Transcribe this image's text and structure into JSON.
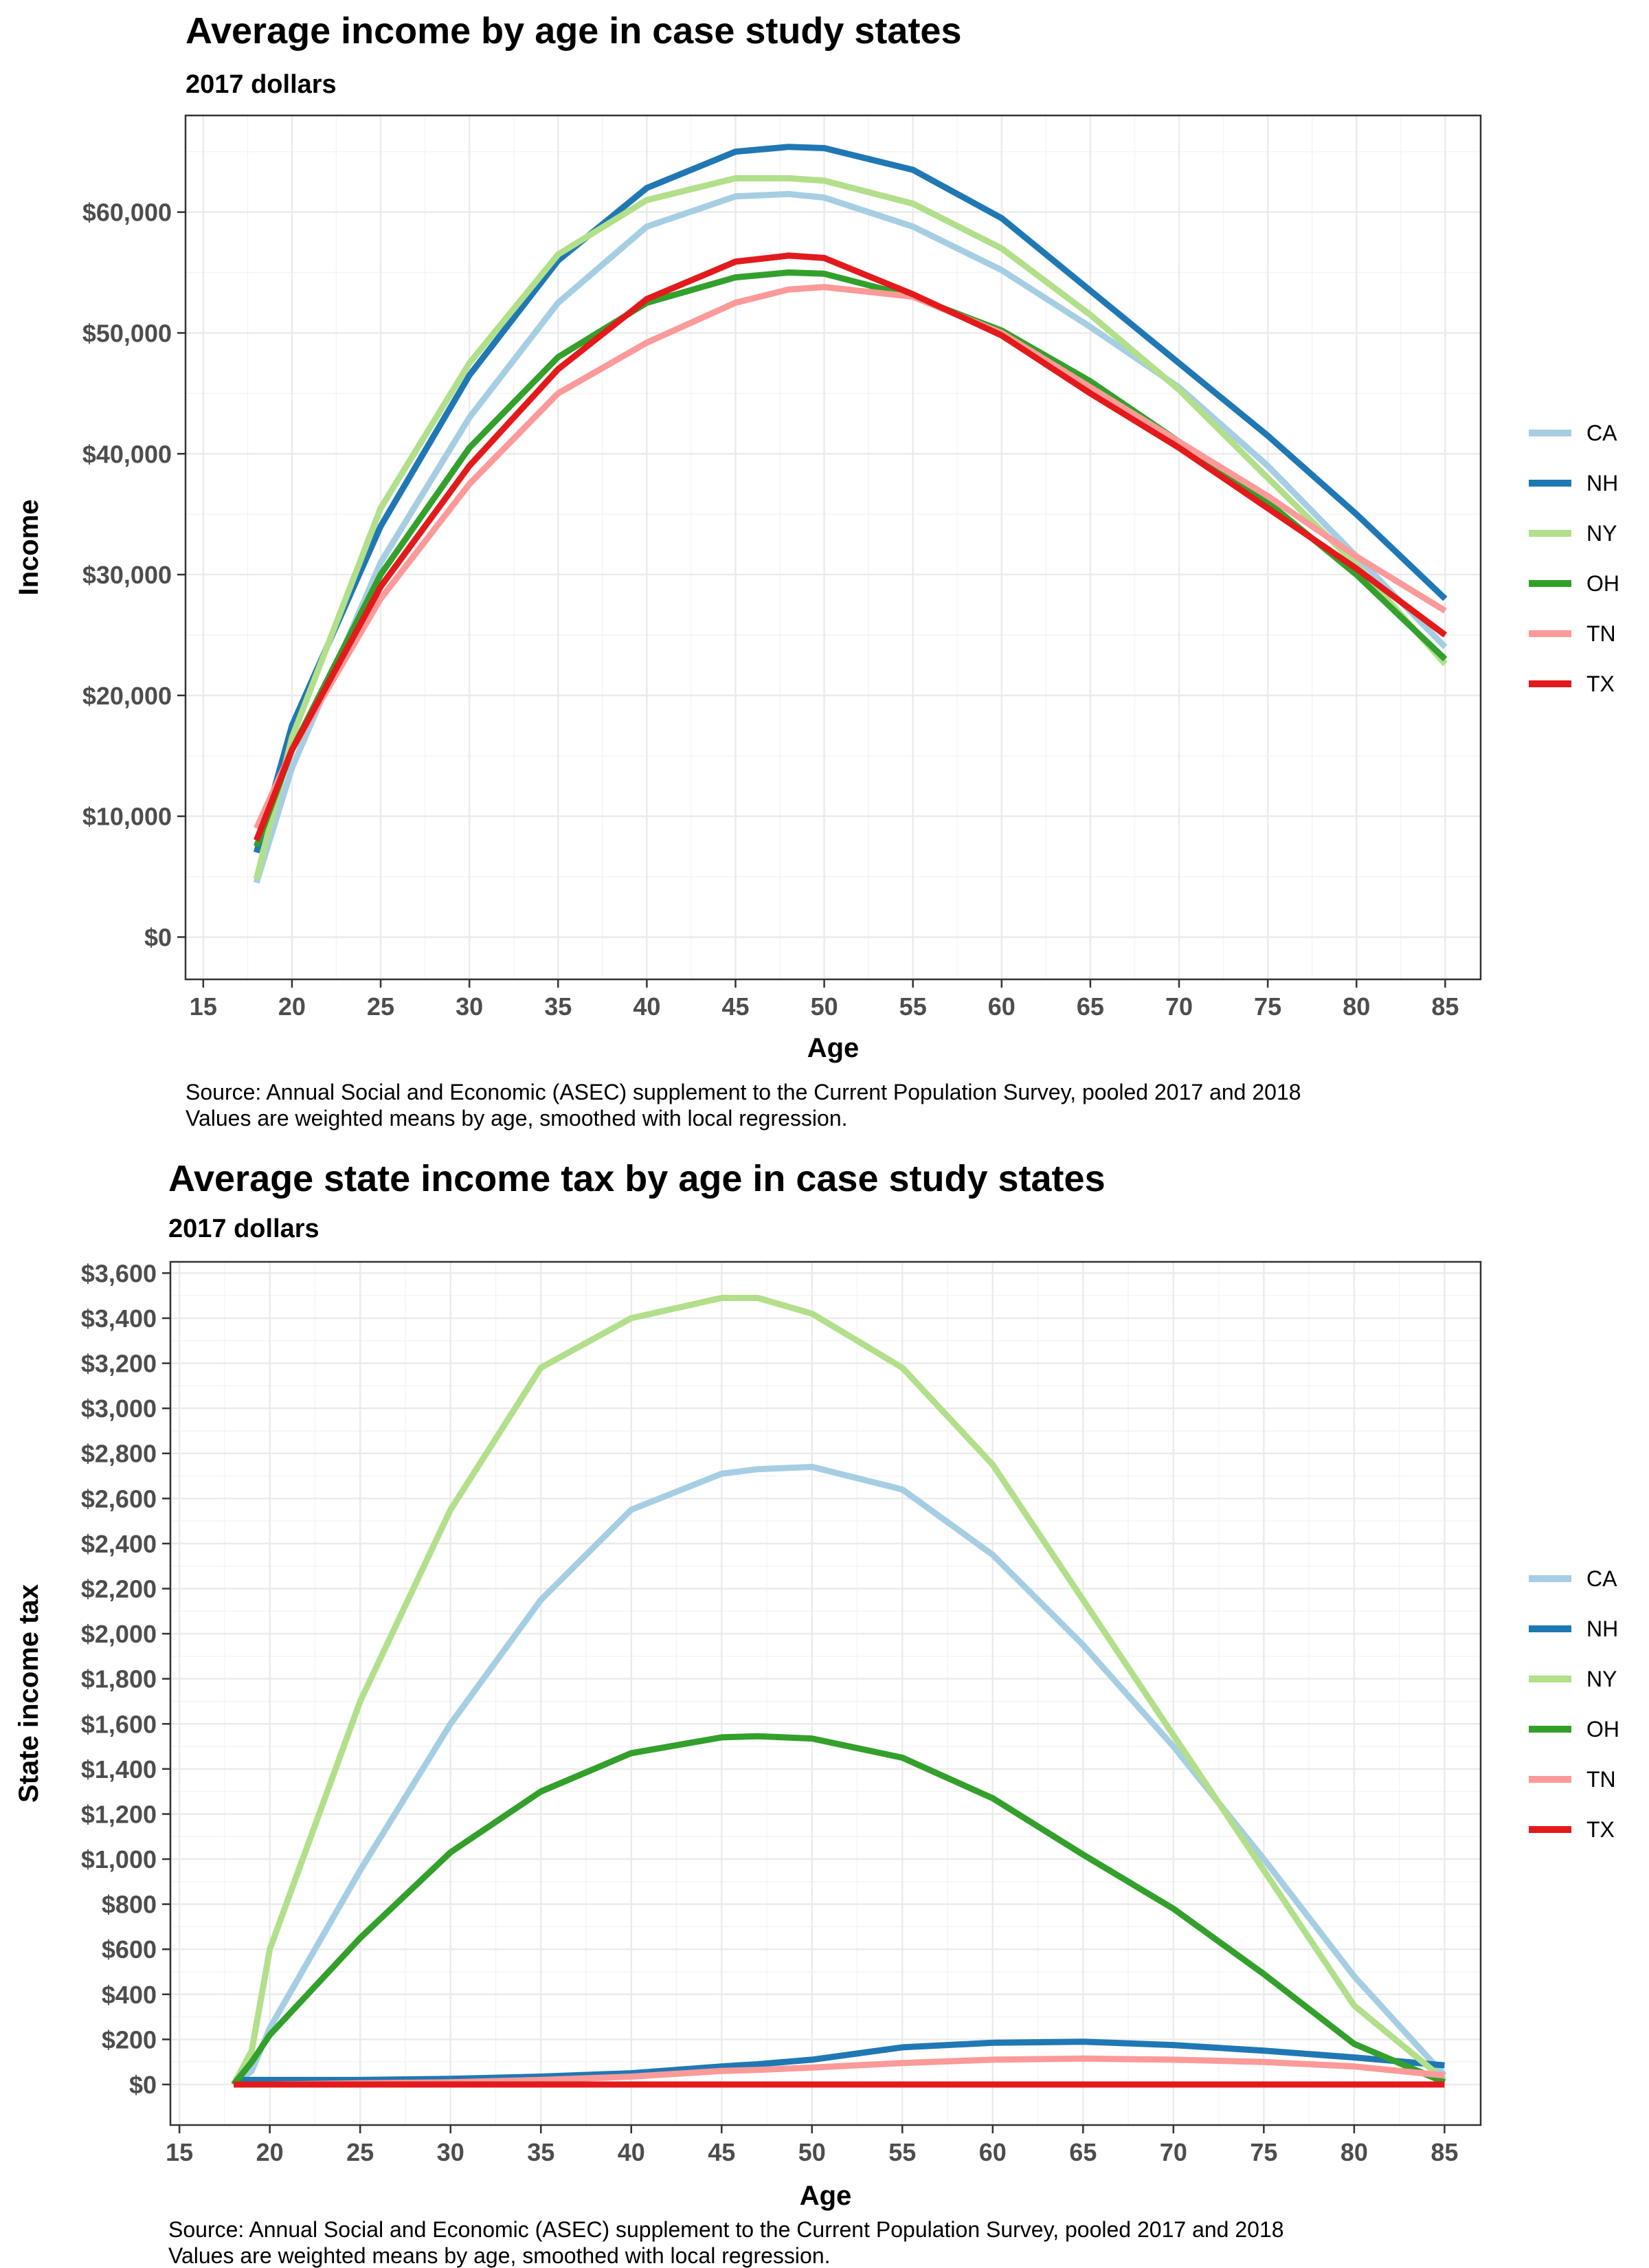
{
  "chart_data": [
    {
      "type": "line",
      "title": "Average income by age in case study states",
      "subtitle": "2017 dollars",
      "xlabel": "Age",
      "ylabel": "Income",
      "xlim": [
        14,
        87
      ],
      "ylim": [
        -3500,
        68000
      ],
      "x_ticks": [
        15,
        20,
        25,
        30,
        35,
        40,
        45,
        50,
        55,
        60,
        65,
        70,
        75,
        80,
        85
      ],
      "x_tick_labels": [
        "15",
        "20",
        "25",
        "30",
        "35",
        "40",
        "45",
        "50",
        "55",
        "60",
        "65",
        "70",
        "75",
        "80",
        "85"
      ],
      "y_ticks": [
        0,
        10000,
        20000,
        30000,
        40000,
        50000,
        60000
      ],
      "y_tick_labels": [
        "$0",
        "$10,000",
        "$20,000",
        "$30,000",
        "$40,000",
        "$50,000",
        "$60,000"
      ],
      "grid": true,
      "legend_position": "right",
      "caption_lines": [
        "Source: Annual Social and Economic (ASEC) supplement to the Current Population Survey, pooled 2017 and 2018",
        "Values are weighted means by age, smoothed with local regression."
      ],
      "x": [
        18,
        20,
        25,
        30,
        35,
        40,
        45,
        48,
        50,
        55,
        60,
        65,
        70,
        75,
        80,
        85
      ],
      "series": [
        {
          "name": "CA",
          "color": "#a6cee3",
          "values": [
            4500,
            14000,
            31000,
            43000,
            52500,
            58800,
            61300,
            61500,
            61200,
            58800,
            55200,
            50500,
            45500,
            39000,
            31500,
            24000
          ]
        },
        {
          "name": "NH",
          "color": "#1f78b4",
          "values": [
            7000,
            17500,
            34000,
            46500,
            56000,
            62000,
            65000,
            65400,
            65300,
            63500,
            59500,
            53500,
            47500,
            41500,
            35000,
            28000
          ]
        },
        {
          "name": "NY",
          "color": "#b2df8a",
          "values": [
            4800,
            16500,
            35500,
            47500,
            56500,
            61000,
            62800,
            62800,
            62600,
            60700,
            57000,
            51500,
            45300,
            38000,
            30800,
            22600
          ]
        },
        {
          "name": "OH",
          "color": "#33a02c",
          "values": [
            7500,
            15500,
            30000,
            40500,
            48000,
            52500,
            54600,
            55000,
            54900,
            53000,
            50200,
            46000,
            41000,
            36000,
            30000,
            23000
          ]
        },
        {
          "name": "TN",
          "color": "#fb9a99",
          "values": [
            9000,
            15500,
            28000,
            37500,
            45000,
            49200,
            52500,
            53600,
            53800,
            53000,
            50000,
            45500,
            41000,
            36500,
            31500,
            27000
          ]
        },
        {
          "name": "TX",
          "color": "#e31a1c",
          "values": [
            8000,
            15500,
            29000,
            39000,
            47000,
            52800,
            55900,
            56400,
            56200,
            53200,
            49800,
            45000,
            40500,
            35500,
            30500,
            25000
          ]
        }
      ]
    },
    {
      "type": "line",
      "title": "Average state income tax by age in case study states",
      "subtitle": "2017 dollars",
      "xlabel": "Age",
      "ylabel": "State income tax",
      "xlim": [
        14.5,
        87
      ],
      "ylim": [
        -180,
        3650
      ],
      "x_ticks": [
        15,
        20,
        25,
        30,
        35,
        40,
        45,
        50,
        55,
        60,
        65,
        70,
        75,
        80,
        85
      ],
      "x_tick_labels": [
        "15",
        "20",
        "25",
        "30",
        "35",
        "40",
        "45",
        "50",
        "55",
        "60",
        "65",
        "70",
        "75",
        "80",
        "85"
      ],
      "y_ticks": [
        0,
        200,
        400,
        600,
        800,
        1000,
        1200,
        1400,
        1600,
        1800,
        2000,
        2200,
        2400,
        2600,
        2800,
        3000,
        3200,
        3400,
        3600
      ],
      "y_tick_labels": [
        "$0",
        "$200",
        "$400",
        "$600",
        "$800",
        "$1,000",
        "$1,200",
        "$1,400",
        "$1,600",
        "$1,800",
        "$2,000",
        "$2,200",
        "$2,400",
        "$2,600",
        "$2,800",
        "$3,000",
        "$3,200",
        "$3,400",
        "$3,600"
      ],
      "grid": true,
      "legend_position": "right",
      "caption_lines": [
        "Source: Annual Social and Economic (ASEC) supplement to the Current Population Survey, pooled 2017 and 2018",
        "Values are weighted means by age, smoothed with local regression."
      ],
      "x": [
        18,
        19,
        20,
        25,
        30,
        35,
        40,
        45,
        47,
        50,
        55,
        60,
        65,
        70,
        75,
        80,
        85
      ],
      "series": [
        {
          "name": "CA",
          "color": "#a6cee3",
          "values": [
            0,
            60,
            250,
            950,
            1600,
            2150,
            2550,
            2710,
            2730,
            2740,
            2640,
            2350,
            1950,
            1500,
            1000,
            480,
            40
          ]
        },
        {
          "name": "NH",
          "color": "#1f78b4",
          "values": [
            20,
            20,
            20,
            20,
            25,
            35,
            50,
            80,
            90,
            110,
            165,
            185,
            190,
            175,
            150,
            120,
            85
          ]
        },
        {
          "name": "NY",
          "color": "#b2df8a",
          "values": [
            0,
            150,
            600,
            1700,
            2550,
            3180,
            3400,
            3490,
            3490,
            3420,
            3180,
            2750,
            2150,
            1550,
            950,
            350,
            20
          ]
        },
        {
          "name": "OH",
          "color": "#33a02c",
          "values": [
            0,
            100,
            220,
            650,
            1030,
            1300,
            1470,
            1540,
            1545,
            1535,
            1450,
            1270,
            1020,
            780,
            490,
            180,
            10
          ]
        },
        {
          "name": "TN",
          "color": "#fb9a99",
          "values": [
            0,
            0,
            0,
            5,
            10,
            20,
            35,
            60,
            65,
            75,
            95,
            110,
            115,
            110,
            100,
            80,
            40
          ]
        },
        {
          "name": "TX",
          "color": "#e31a1c",
          "values": [
            0,
            0,
            0,
            0,
            0,
            0,
            0,
            0,
            0,
            0,
            0,
            0,
            0,
            0,
            0,
            0,
            0
          ]
        }
      ]
    }
  ]
}
